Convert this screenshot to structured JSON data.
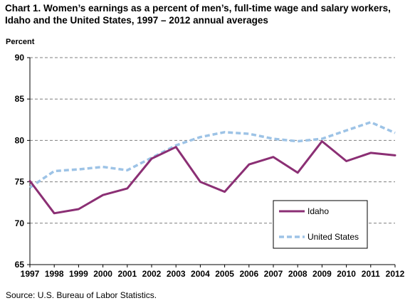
{
  "title": "Chart 1. Women’s earnings as a percent of men’s, full-time wage and salary workers, Idaho and the United States, 1997 – 2012 annual averages",
  "source": "Source:  U.S.  Bureau of Labor Statistics.",
  "chart_data": {
    "type": "line",
    "title": "Chart 1. Women’s earnings as a percent of men’s, full-time wage and salary workers, Idaho and the United States, 1997 – 2012 annual averages",
    "ylabel": "Percent",
    "xlabel": "",
    "ylim": [
      65,
      90
    ],
    "yticks": [
      65,
      70,
      75,
      80,
      85,
      90
    ],
    "grid": true,
    "legend_position": "bottom-right",
    "categories": [
      "1997",
      "1998",
      "1999",
      "2000",
      "2001",
      "2002",
      "2003",
      "2004",
      "2005",
      "2006",
      "2007",
      "2008",
      "2009",
      "2010",
      "2011",
      "2012"
    ],
    "series": [
      {
        "name": "Idaho",
        "color": "#8B2F74",
        "style": "solid",
        "values": [
          75.1,
          71.2,
          71.7,
          73.4,
          74.2,
          77.8,
          79.2,
          75.0,
          73.8,
          77.1,
          78.0,
          76.1,
          79.9,
          77.5,
          78.5,
          78.2
        ]
      },
      {
        "name": "United States",
        "color": "#9DC3E6",
        "style": "dashed",
        "values": [
          74.3,
          76.3,
          76.5,
          76.8,
          76.4,
          77.9,
          79.4,
          80.4,
          81.0,
          80.8,
          80.2,
          79.9,
          80.2,
          81.2,
          82.2,
          80.9
        ]
      }
    ]
  }
}
